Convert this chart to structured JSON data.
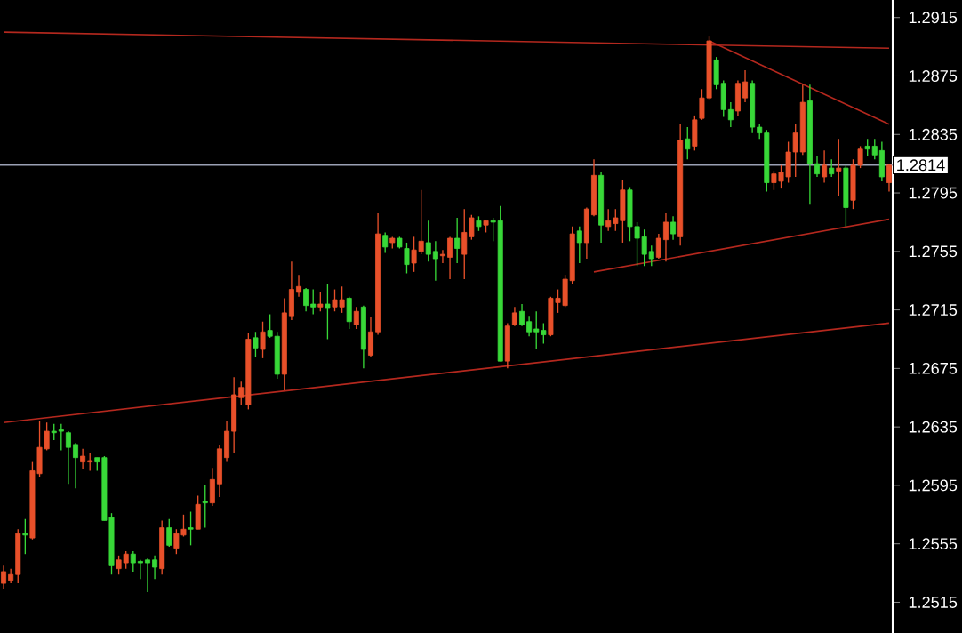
{
  "chart_data": {
    "type": "candlestick",
    "categories": [
      null,
      null,
      null,
      null,
      null,
      null,
      null,
      null,
      null,
      null,
      null,
      null,
      null,
      null,
      null,
      null,
      null,
      null,
      null,
      null,
      null,
      null,
      null,
      null,
      null,
      null,
      null,
      null,
      null,
      null,
      null,
      null,
      null,
      null,
      null,
      null,
      null,
      null,
      null,
      null,
      null,
      null,
      null,
      null,
      null,
      null,
      null,
      null,
      null,
      null,
      null,
      null,
      null,
      null,
      null,
      null,
      null,
      null,
      null,
      null,
      null,
      null,
      null,
      null,
      null,
      null,
      null,
      null,
      null,
      null,
      null,
      null,
      null,
      null,
      null,
      null,
      null,
      null,
      null,
      null,
      null,
      null,
      null,
      null,
      null,
      null,
      null,
      null,
      null,
      null,
      null,
      null,
      null,
      null,
      null,
      null,
      null,
      null,
      null,
      null,
      null,
      null,
      null,
      null,
      null,
      null,
      null,
      null,
      null,
      null,
      null,
      null,
      null,
      null,
      null,
      null,
      null,
      null,
      null,
      null,
      null,
      null,
      null,
      null
    ],
    "ohlc": [
      [
        1.2528,
        1.254,
        1.2524,
        1.2536
      ],
      [
        1.253,
        1.2538,
        1.2528,
        1.2534
      ],
      [
        1.2534,
        1.2565,
        1.2528,
        1.2562
      ],
      [
        1.2562,
        1.2572,
        1.2548,
        1.2561
      ],
      [
        1.2559,
        1.2611,
        1.2558,
        1.2605
      ],
      [
        1.2603,
        1.2639,
        1.2601,
        1.2621
      ],
      [
        1.262,
        1.2638,
        1.2619,
        1.2632
      ],
      [
        1.2632,
        1.2637,
        1.2626,
        1.2631
      ],
      [
        1.2633,
        1.2637,
        1.2619,
        1.2632
      ],
      [
        1.2631,
        1.2632,
        1.2596,
        1.2621
      ],
      [
        1.2623,
        1.2624,
        1.2593,
        1.2614
      ],
      [
        1.2611,
        1.262,
        1.2606,
        1.2615
      ],
      [
        1.2611,
        1.2617,
        1.2605,
        1.2612
      ],
      [
        1.2614,
        1.2614,
        1.2605,
        1.2611
      ],
      [
        1.2614,
        1.2615,
        1.2571,
        1.2571
      ],
      [
        1.2573,
        1.2576,
        1.2534,
        1.254
      ],
      [
        1.2538,
        1.2547,
        1.2534,
        1.2544
      ],
      [
        1.2542,
        1.255,
        1.2538,
        1.2548
      ],
      [
        1.2548,
        1.255,
        1.2536,
        1.2542
      ],
      [
        1.2543,
        1.2544,
        1.2531,
        1.2542
      ],
      [
        1.2544,
        1.2545,
        1.2522,
        1.2542
      ],
      [
        1.2544,
        1.2547,
        1.2531,
        1.2539
      ],
      [
        1.2538,
        1.2571,
        1.2534,
        1.2566
      ],
      [
        1.2566,
        1.2572,
        1.2553,
        1.2554
      ],
      [
        1.2552,
        1.2565,
        1.2548,
        1.2562
      ],
      [
        1.2561,
        1.2575,
        1.256,
        1.2565
      ],
      [
        1.2566,
        1.2577,
        1.2554,
        1.2565
      ],
      [
        1.2565,
        1.2588,
        1.2565,
        1.2582
      ],
      [
        1.2584,
        1.2595,
        1.2566,
        1.2583
      ],
      [
        1.2583,
        1.2607,
        1.2581,
        1.2599
      ],
      [
        1.2596,
        1.2623,
        1.2587,
        1.262
      ],
      [
        1.2614,
        1.2639,
        1.2611,
        1.2632
      ],
      [
        1.2632,
        1.2669,
        1.2617,
        1.2657
      ],
      [
        1.2655,
        1.2666,
        1.265,
        1.2662
      ],
      [
        1.265,
        1.2699,
        1.2647,
        1.2695
      ],
      [
        1.2696,
        1.27,
        1.2683,
        1.2689
      ],
      [
        1.2688,
        1.2707,
        1.2682,
        1.27
      ],
      [
        1.2701,
        1.2712,
        1.2696,
        1.2697
      ],
      [
        1.2697,
        1.27,
        1.2668,
        1.2671
      ],
      [
        1.2671,
        1.2723,
        1.266,
        1.2713
      ],
      [
        1.2711,
        1.2748,
        1.2708,
        1.2729
      ],
      [
        1.2727,
        1.2739,
        1.2724,
        1.2731
      ],
      [
        1.2729,
        1.273,
        1.2714,
        1.2718
      ],
      [
        1.2719,
        1.2729,
        1.2712,
        1.2717
      ],
      [
        1.2717,
        1.2727,
        1.2714,
        1.2719
      ],
      [
        1.2719,
        1.2733,
        1.2695,
        1.2716
      ],
      [
        1.2717,
        1.2729,
        1.2714,
        1.2722
      ],
      [
        1.2717,
        1.2731,
        1.2713,
        1.2722
      ],
      [
        1.2723,
        1.2724,
        1.2702,
        1.2707
      ],
      [
        1.2705,
        1.2717,
        1.2702,
        1.2714
      ],
      [
        1.2717,
        1.2718,
        1.2675,
        1.2688
      ],
      [
        1.2684,
        1.271,
        1.2683,
        1.27
      ],
      [
        1.27,
        1.2781,
        1.2698,
        1.2767
      ],
      [
        1.2766,
        1.2768,
        1.2754,
        1.2758
      ],
      [
        1.2761,
        1.2765,
        1.2757,
        1.2764
      ],
      [
        1.2764,
        1.2765,
        1.2757,
        1.2758
      ],
      [
        1.2757,
        1.2761,
        1.274,
        1.2746
      ],
      [
        1.2747,
        1.2765,
        1.2741,
        1.2756
      ],
      [
        1.2755,
        1.2797,
        1.2753,
        1.2762
      ],
      [
        1.2761,
        1.2776,
        1.2748,
        1.2753
      ],
      [
        1.2755,
        1.2762,
        1.2735,
        1.275
      ],
      [
        1.2752,
        1.2756,
        1.2747,
        1.2753
      ],
      [
        1.2751,
        1.2765,
        1.2736,
        1.2764
      ],
      [
        1.2764,
        1.2778,
        1.2747,
        1.2757
      ],
      [
        1.2753,
        1.2784,
        1.2736,
        1.2768
      ],
      [
        1.2765,
        1.278,
        1.2763,
        1.2778
      ],
      [
        1.2776,
        1.2779,
        1.2769,
        1.2772
      ],
      [
        1.2773,
        1.2776,
        1.2768,
        1.2776
      ],
      [
        1.2776,
        1.2778,
        1.2762,
        1.2775
      ],
      [
        1.2776,
        1.2786,
        1.268,
        1.268
      ],
      [
        1.268,
        1.2706,
        1.2675,
        1.2704
      ],
      [
        1.2705,
        1.2717,
        1.2704,
        1.2713
      ],
      [
        1.2714,
        1.2719,
        1.2704,
        1.2705
      ],
      [
        1.2707,
        1.2711,
        1.2697,
        1.27
      ],
      [
        1.2702,
        1.2714,
        1.2688,
        1.27
      ],
      [
        1.2701,
        1.2706,
        1.2692,
        1.2698
      ],
      [
        1.2698,
        1.2724,
        1.2697,
        1.2723
      ],
      [
        1.272,
        1.2729,
        1.2713,
        1.2723
      ],
      [
        1.2718,
        1.2739,
        1.2717,
        1.2736
      ],
      [
        1.2735,
        1.2772,
        1.2733,
        1.2767
      ],
      [
        1.2769,
        1.2772,
        1.2747,
        1.2761
      ],
      [
        1.2761,
        1.2785,
        1.275,
        1.2784
      ],
      [
        1.278,
        1.2818,
        1.2779,
        1.2807
      ],
      [
        1.2807,
        1.2809,
        1.2761,
        1.2773
      ],
      [
        1.2772,
        1.2784,
        1.2769,
        1.2776
      ],
      [
        1.2774,
        1.2784,
        1.2769,
        1.2778
      ],
      [
        1.2776,
        1.2804,
        1.2761,
        1.2797
      ],
      [
        1.2797,
        1.2799,
        1.2762,
        1.2772
      ],
      [
        1.2772,
        1.2775,
        1.2745,
        1.2764
      ],
      [
        1.2765,
        1.277,
        1.2745,
        1.2753
      ],
      [
        1.2755,
        1.2759,
        1.2745,
        1.275
      ],
      [
        1.2751,
        1.2767,
        1.275,
        1.2764
      ],
      [
        1.2763,
        1.2781,
        1.2748,
        1.2775
      ],
      [
        1.2775,
        1.2779,
        1.2763,
        1.2767
      ],
      [
        1.2765,
        1.2842,
        1.2759,
        1.2831
      ],
      [
        1.2832,
        1.284,
        1.2818,
        1.2825
      ],
      [
        1.2827,
        1.2848,
        1.2824,
        1.2845
      ],
      [
        1.2846,
        1.2866,
        1.2845,
        1.286
      ],
      [
        1.286,
        1.2902,
        1.2859,
        1.2899
      ],
      [
        1.2886,
        1.2888,
        1.2866,
        1.2869
      ],
      [
        1.287,
        1.2872,
        1.2847,
        1.2852
      ],
      [
        1.2852,
        1.2857,
        1.284,
        1.2845
      ],
      [
        1.2851,
        1.2872,
        1.2848,
        1.287
      ],
      [
        1.286,
        1.2879,
        1.2857,
        1.2871
      ],
      [
        1.287,
        1.2872,
        1.2836,
        1.284
      ],
      [
        1.284,
        1.2842,
        1.2832,
        1.2836
      ],
      [
        1.2836,
        1.2838,
        1.2796,
        1.2802
      ],
      [
        1.2802,
        1.281,
        1.2797,
        1.2808
      ],
      [
        1.2803,
        1.2814,
        1.2798,
        1.2809
      ],
      [
        1.2806,
        1.283,
        1.2802,
        1.2823
      ],
      [
        1.2823,
        1.2842,
        1.2806,
        1.2836
      ],
      [
        1.2823,
        1.2869,
        1.2821,
        1.2857
      ],
      [
        1.2858,
        1.2869,
        1.2787,
        1.2815
      ],
      [
        1.2815,
        1.282,
        1.2806,
        1.2808
      ],
      [
        1.2806,
        1.2824,
        1.2802,
        1.2814
      ],
      [
        1.2812,
        1.2818,
        1.2806,
        1.2808
      ],
      [
        1.281,
        1.2832,
        1.2793,
        1.2812
      ],
      [
        1.2812,
        1.2814,
        1.2772,
        1.2785
      ],
      [
        1.279,
        1.2818,
        1.2784,
        1.2814
      ],
      [
        1.2814,
        1.2827,
        1.2812,
        1.2825
      ],
      [
        1.2827,
        1.2832,
        1.282,
        1.2825
      ],
      [
        1.2827,
        1.2832,
        1.2818,
        1.2821
      ],
      [
        1.2824,
        1.283,
        1.2803,
        1.2806
      ],
      [
        1.2802,
        1.2815,
        1.2796,
        1.2814
      ]
    ],
    "colors": [
      "#e8502a",
      "#e8502a",
      "#e8502a",
      "#38d838",
      "#e8502a",
      "#e8502a",
      "#e8502a",
      "#38d838",
      "#38d838",
      "#38d838",
      "#38d838",
      "#e8502a",
      "#e8502a",
      "#38d838",
      "#38d838",
      "#38d838",
      "#e8502a",
      "#e8502a",
      "#38d838",
      "#38d838",
      "#38d838",
      "#38d838",
      "#e8502a",
      "#38d838",
      "#e8502a",
      "#e8502a",
      "#38d838",
      "#e8502a",
      "#38d838",
      "#e8502a",
      "#e8502a",
      "#e8502a",
      "#e8502a",
      "#e8502a",
      "#e8502a",
      "#38d838",
      "#e8502a",
      "#38d838",
      "#38d838",
      "#e8502a",
      "#e8502a",
      "#e8502a",
      "#38d838",
      "#38d838",
      "#e8502a",
      "#38d838",
      "#e8502a",
      "#e8502a",
      "#38d838",
      "#e8502a",
      "#38d838",
      "#e8502a",
      "#e8502a",
      "#38d838",
      "#e8502a",
      "#38d838",
      "#38d838",
      "#e8502a",
      "#e8502a",
      "#38d838",
      "#38d838",
      "#e8502a",
      "#e8502a",
      "#38d838",
      "#e8502a",
      "#e8502a",
      "#38d838",
      "#e8502a",
      "#38d838",
      "#38d838",
      "#e8502a",
      "#e8502a",
      "#38d838",
      "#38d838",
      "#38d838",
      "#38d838",
      "#e8502a",
      "#e8502a",
      "#e8502a",
      "#e8502a",
      "#38d838",
      "#e8502a",
      "#e8502a",
      "#38d838",
      "#e8502a",
      "#e8502a",
      "#e8502a",
      "#38d838",
      "#38d838",
      "#38d838",
      "#38d838",
      "#e8502a",
      "#e8502a",
      "#38d838",
      "#e8502a",
      "#38d838",
      "#e8502a",
      "#e8502a",
      "#e8502a",
      "#38d838",
      "#38d838",
      "#38d838",
      "#e8502a",
      "#e8502a",
      "#38d838",
      "#38d838",
      "#38d838",
      "#e8502a",
      "#e8502a",
      "#e8502a",
      "#e8502a",
      "#e8502a",
      "#38d838",
      "#38d838",
      "#e8502a",
      "#38d838",
      "#e8502a",
      "#38d838",
      "#e8502a",
      "#e8502a",
      "#38d838",
      "#38d838",
      "#38d838",
      "#e8502a"
    ],
    "series": [
      {
        "type": "line",
        "color": "#b4281e",
        "values": [
          1.2905,
          null,
          null,
          null,
          null,
          null,
          null,
          null,
          null,
          null,
          null,
          null,
          null,
          null,
          null,
          null,
          null,
          null,
          null,
          null,
          null,
          null,
          null,
          null,
          null,
          null,
          null,
          null,
          null,
          null,
          null,
          null,
          null,
          null,
          null,
          null,
          null,
          null,
          null,
          null,
          null,
          null,
          null,
          null,
          null,
          null,
          null,
          null,
          null,
          null,
          null,
          null,
          null,
          null,
          null,
          null,
          null,
          null,
          null,
          null,
          null,
          null,
          null,
          null,
          null,
          null,
          null,
          null,
          null,
          null,
          null,
          null,
          null,
          null,
          null,
          null,
          null,
          null,
          null,
          null,
          null,
          null,
          null,
          null,
          null,
          null,
          null,
          null,
          null,
          null,
          null,
          null,
          null,
          null,
          null,
          null,
          null,
          null,
          null,
          null,
          null,
          null,
          null,
          null,
          null,
          null,
          null,
          null,
          null,
          null,
          null,
          null,
          null,
          null,
          null,
          null,
          null,
          null,
          null,
          null,
          null,
          null,
          null,
          1.2894
        ]
      },
      {
        "type": "line",
        "color": "#b4281e",
        "values": [
          1.2638,
          null,
          null,
          null,
          null,
          null,
          null,
          null,
          null,
          null,
          null,
          null,
          null,
          null,
          null,
          null,
          null,
          null,
          null,
          null,
          null,
          null,
          null,
          null,
          null,
          null,
          null,
          null,
          null,
          null,
          null,
          null,
          null,
          null,
          null,
          null,
          null,
          null,
          null,
          null,
          null,
          null,
          null,
          null,
          null,
          null,
          null,
          null,
          null,
          null,
          null,
          null,
          null,
          null,
          null,
          null,
          null,
          null,
          null,
          null,
          null,
          null,
          null,
          null,
          null,
          null,
          null,
          null,
          null,
          null,
          null,
          null,
          null,
          null,
          null,
          null,
          null,
          null,
          null,
          null,
          null,
          null,
          null,
          null,
          null,
          null,
          null,
          null,
          null,
          null,
          null,
          null,
          null,
          null,
          null,
          null,
          null,
          null,
          null,
          null,
          null,
          null,
          null,
          null,
          null,
          null,
          null,
          null,
          null,
          null,
          null,
          null,
          null,
          null,
          null,
          null,
          null,
          null,
          null,
          null,
          null,
          null,
          null,
          1.2706
        ]
      },
      {
        "type": "line",
        "color": "#b4281e",
        "values": [
          null,
          null,
          null,
          null,
          null,
          null,
          null,
          null,
          null,
          null,
          null,
          null,
          null,
          null,
          null,
          null,
          null,
          null,
          null,
          null,
          null,
          null,
          null,
          null,
          null,
          null,
          null,
          null,
          null,
          null,
          null,
          null,
          null,
          null,
          null,
          null,
          null,
          null,
          null,
          null,
          null,
          null,
          null,
          null,
          null,
          null,
          null,
          null,
          null,
          null,
          null,
          null,
          null,
          null,
          null,
          null,
          null,
          null,
          null,
          null,
          null,
          null,
          null,
          null,
          null,
          null,
          null,
          null,
          null,
          null,
          null,
          null,
          null,
          null,
          null,
          null,
          null,
          null,
          null,
          null,
          null,
          null,
          null,
          null,
          null,
          null,
          null,
          null,
          null,
          null,
          null,
          null,
          null,
          null,
          null,
          null,
          null,
          null,
          1.2899,
          null,
          null,
          null,
          null,
          null,
          null,
          null,
          null,
          null,
          null,
          null,
          null,
          null,
          null,
          null,
          null,
          null,
          null,
          null,
          null,
          null,
          null,
          null,
          null,
          1.2842
        ]
      },
      {
        "type": "line",
        "color": "#b4281e",
        "values": [
          null,
          null,
          null,
          null,
          null,
          null,
          null,
          null,
          null,
          null,
          null,
          null,
          null,
          null,
          null,
          null,
          null,
          null,
          null,
          null,
          null,
          null,
          null,
          null,
          null,
          null,
          null,
          null,
          null,
          null,
          null,
          null,
          null,
          null,
          null,
          null,
          null,
          null,
          null,
          null,
          null,
          null,
          null,
          null,
          null,
          null,
          null,
          null,
          null,
          null,
          null,
          null,
          null,
          null,
          null,
          null,
          null,
          null,
          null,
          null,
          null,
          null,
          null,
          null,
          null,
          null,
          null,
          null,
          null,
          null,
          null,
          null,
          null,
          null,
          null,
          null,
          null,
          null,
          null,
          null,
          null,
          null,
          1.2741,
          null,
          null,
          null,
          null,
          null,
          null,
          null,
          null,
          null,
          null,
          null,
          null,
          null,
          null,
          null,
          null,
          null,
          null,
          null,
          null,
          null,
          null,
          null,
          null,
          null,
          null,
          null,
          null,
          null,
          null,
          null,
          null,
          null,
          null,
          null,
          null,
          null,
          null,
          null,
          null,
          1.2777
        ]
      }
    ],
    "ylim": [
      1.2494,
      1.2927
    ],
    "yticks": [
      1.2915,
      1.2875,
      1.2835,
      1.2795,
      1.2755,
      1.2715,
      1.2675,
      1.2635,
      1.2595,
      1.2555,
      1.2515
    ],
    "ref_lines": [
      {
        "axis": "y",
        "value": 1.2814,
        "label": "1.2814",
        "color": "#9aa0b4"
      }
    ],
    "tick_labels": "y",
    "marker": "none"
  }
}
